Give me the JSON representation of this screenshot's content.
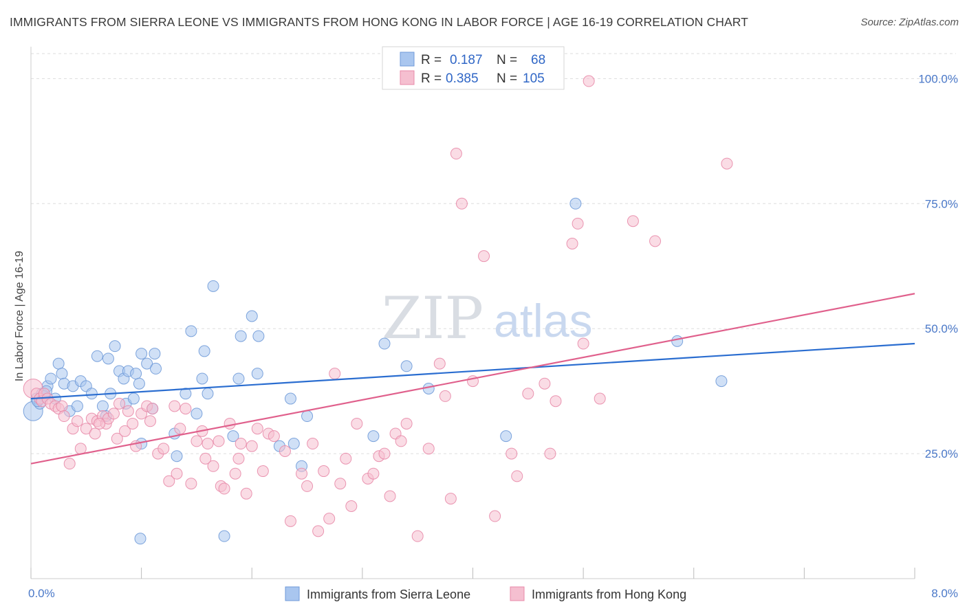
{
  "title": "IMMIGRANTS FROM SIERRA LEONE VS IMMIGRANTS FROM HONG KONG IN LABOR FORCE | AGE 16-19 CORRELATION CHART",
  "source": "Source: ZipAtlas.com",
  "watermark": {
    "zip": "ZIP",
    "atlas": "atlas"
  },
  "colors": {
    "blue_fill": "#a9c6ef",
    "blue_stroke": "#6f9ad8",
    "blue_line": "#2a6dd0",
    "pink_fill": "#f5bfd0",
    "pink_stroke": "#e88aa8",
    "pink_line": "#e0608c",
    "grid": "#dddddd",
    "tick_label": "#4a78c8"
  },
  "legend": {
    "rows": [
      {
        "r_label": "R =",
        "r_value": "0.187",
        "n_label": "N =",
        "n_value": "68"
      },
      {
        "r_label": "R =",
        "r_value": "0.385",
        "n_label": "N =",
        "n_value": "105"
      }
    ]
  },
  "chart_data": {
    "type": "scatter",
    "title": "IMMIGRANTS FROM SIERRA LEONE VS IMMIGRANTS FROM HONG KONG IN LABOR FORCE | AGE 16-19 CORRELATION CHART",
    "xlabel": "",
    "ylabel": "In Labor Force | Age 16-19",
    "xlim": [
      0,
      8
    ],
    "ylim": [
      0,
      105
    ],
    "x_tick_labels": [
      "0.0%",
      "8.0%"
    ],
    "y_ticks": [
      25,
      50,
      75,
      100
    ],
    "y_tick_labels": [
      "25.0%",
      "50.0%",
      "75.0%",
      "100.0%"
    ],
    "grid": true,
    "legend_position": "top-center",
    "series": [
      {
        "name": "Immigrants from Sierra Leone",
        "color": "#a9c6ef",
        "trend": {
          "x": [
            0,
            8
          ],
          "y": [
            36.0,
            47.0
          ]
        },
        "points": [
          [
            0.02,
            33.5
          ],
          [
            0.05,
            36.0
          ],
          [
            0.08,
            35.0
          ],
          [
            0.1,
            37.0
          ],
          [
            0.12,
            36.5
          ],
          [
            0.15,
            38.5
          ],
          [
            0.18,
            40.0
          ],
          [
            0.22,
            36.0
          ],
          [
            0.25,
            43.0
          ],
          [
            0.28,
            41.0
          ],
          [
            0.3,
            39.0
          ],
          [
            0.35,
            33.5
          ],
          [
            0.38,
            38.5
          ],
          [
            0.42,
            34.5
          ],
          [
            0.45,
            39.5
          ],
          [
            0.5,
            38.5
          ],
          [
            0.55,
            37.0
          ],
          [
            0.6,
            44.5
          ],
          [
            0.65,
            34.5
          ],
          [
            0.68,
            32.5
          ],
          [
            0.7,
            44.0
          ],
          [
            0.72,
            37.0
          ],
          [
            0.76,
            46.5
          ],
          [
            0.8,
            41.5
          ],
          [
            0.84,
            40.0
          ],
          [
            0.86,
            35.0
          ],
          [
            0.88,
            41.5
          ],
          [
            0.93,
            36.0
          ],
          [
            0.95,
            41.0
          ],
          [
            0.98,
            39.0
          ],
          [
            1.0,
            45.0
          ],
          [
            1.05,
            43.0
          ],
          [
            1.1,
            34.0
          ],
          [
            1.12,
            45.0
          ],
          [
            1.13,
            42.0
          ],
          [
            1.0,
            27.0
          ],
          [
            0.99,
            8.0
          ],
          [
            1.3,
            29.0
          ],
          [
            1.32,
            24.5
          ],
          [
            1.4,
            37.0
          ],
          [
            1.45,
            49.5
          ],
          [
            1.5,
            33.0
          ],
          [
            1.55,
            40.0
          ],
          [
            1.57,
            45.5
          ],
          [
            1.6,
            37.0
          ],
          [
            1.65,
            58.5
          ],
          [
            1.75,
            8.5
          ],
          [
            1.83,
            28.5
          ],
          [
            1.88,
            40.0
          ],
          [
            1.9,
            48.5
          ],
          [
            2.0,
            52.5
          ],
          [
            2.05,
            41.0
          ],
          [
            2.06,
            48.5
          ],
          [
            2.25,
            26.5
          ],
          [
            2.35,
            36.0
          ],
          [
            2.38,
            27.0
          ],
          [
            2.45,
            22.5
          ],
          [
            2.5,
            32.5
          ],
          [
            3.1,
            28.5
          ],
          [
            3.2,
            47.0
          ],
          [
            3.4,
            42.5
          ],
          [
            3.6,
            38.0
          ],
          [
            4.3,
            28.5
          ],
          [
            4.93,
            75.0
          ],
          [
            5.85,
            47.5
          ],
          [
            6.25,
            39.5
          ],
          [
            0.06,
            35.5
          ],
          [
            0.14,
            37.5
          ]
        ]
      },
      {
        "name": "Immigrants from Hong Kong",
        "color": "#f5bfd0",
        "trend": {
          "x": [
            0,
            8
          ],
          "y": [
            23.0,
            57.0
          ]
        },
        "points": [
          [
            0.02,
            38.0
          ],
          [
            0.05,
            37.0
          ],
          [
            0.08,
            36.0
          ],
          [
            0.1,
            35.5
          ],
          [
            0.12,
            37.0
          ],
          [
            0.15,
            36.0
          ],
          [
            0.18,
            35.0
          ],
          [
            0.22,
            34.5
          ],
          [
            0.25,
            34.0
          ],
          [
            0.28,
            34.5
          ],
          [
            0.3,
            32.5
          ],
          [
            0.35,
            23.0
          ],
          [
            0.38,
            30.0
          ],
          [
            0.42,
            31.5
          ],
          [
            0.45,
            26.0
          ],
          [
            0.5,
            30.0
          ],
          [
            0.55,
            32.0
          ],
          [
            0.58,
            29.0
          ],
          [
            0.6,
            31.5
          ],
          [
            0.65,
            32.5
          ],
          [
            0.68,
            31.0
          ],
          [
            0.7,
            32.0
          ],
          [
            0.75,
            33.0
          ],
          [
            0.78,
            28.0
          ],
          [
            0.8,
            35.0
          ],
          [
            0.85,
            29.5
          ],
          [
            0.88,
            33.5
          ],
          [
            0.92,
            31.0
          ],
          [
            0.95,
            26.5
          ],
          [
            1.0,
            33.0
          ],
          [
            1.05,
            34.5
          ],
          [
            1.08,
            31.5
          ],
          [
            1.1,
            34.0
          ],
          [
            1.15,
            25.0
          ],
          [
            1.2,
            26.0
          ],
          [
            1.25,
            19.5
          ],
          [
            1.3,
            34.5
          ],
          [
            1.32,
            21.0
          ],
          [
            1.35,
            30.0
          ],
          [
            1.4,
            34.0
          ],
          [
            1.45,
            19.0
          ],
          [
            1.5,
            27.5
          ],
          [
            1.55,
            29.5
          ],
          [
            1.58,
            24.0
          ],
          [
            1.6,
            27.0
          ],
          [
            1.65,
            22.5
          ],
          [
            1.7,
            27.5
          ],
          [
            1.72,
            18.5
          ],
          [
            1.75,
            18.0
          ],
          [
            1.8,
            31.0
          ],
          [
            1.85,
            21.0
          ],
          [
            1.88,
            24.0
          ],
          [
            1.9,
            27.0
          ],
          [
            1.95,
            17.0
          ],
          [
            2.0,
            26.5
          ],
          [
            2.05,
            30.0
          ],
          [
            2.1,
            21.5
          ],
          [
            2.15,
            29.0
          ],
          [
            2.2,
            28.5
          ],
          [
            2.3,
            25.5
          ],
          [
            2.35,
            11.5
          ],
          [
            2.45,
            21.0
          ],
          [
            2.5,
            18.5
          ],
          [
            2.55,
            27.0
          ],
          [
            2.6,
            9.5
          ],
          [
            2.65,
            21.5
          ],
          [
            2.7,
            12.0
          ],
          [
            2.75,
            41.0
          ],
          [
            2.8,
            19.0
          ],
          [
            2.85,
            24.0
          ],
          [
            2.9,
            14.5
          ],
          [
            2.95,
            31.0
          ],
          [
            3.05,
            20.0
          ],
          [
            3.1,
            21.0
          ],
          [
            3.15,
            24.5
          ],
          [
            3.2,
            25.0
          ],
          [
            3.25,
            16.5
          ],
          [
            3.3,
            29.0
          ],
          [
            3.35,
            27.5
          ],
          [
            3.4,
            31.0
          ],
          [
            3.5,
            8.5
          ],
          [
            3.6,
            26.0
          ],
          [
            3.7,
            43.0
          ],
          [
            3.75,
            36.5
          ],
          [
            3.8,
            16.0
          ],
          [
            3.85,
            85.0
          ],
          [
            3.9,
            75.0
          ],
          [
            4.1,
            64.5
          ],
          [
            4.0,
            39.5
          ],
          [
            4.2,
            12.5
          ],
          [
            4.35,
            25.0
          ],
          [
            4.4,
            20.5
          ],
          [
            4.5,
            37.0
          ],
          [
            4.65,
            39.0
          ],
          [
            4.7,
            25.0
          ],
          [
            4.75,
            35.5
          ],
          [
            4.95,
            71.0
          ],
          [
            4.9,
            67.0
          ],
          [
            5.0,
            47.0
          ],
          [
            5.05,
            99.5
          ],
          [
            5.15,
            36.0
          ],
          [
            5.45,
            71.5
          ],
          [
            5.65,
            67.5
          ],
          [
            6.3,
            83.0
          ],
          [
            0.62,
            31.0
          ]
        ]
      }
    ]
  },
  "bottom_legend": [
    {
      "label": "Immigrants from Sierra Leone"
    },
    {
      "label": "Immigrants from Hong Kong"
    }
  ]
}
